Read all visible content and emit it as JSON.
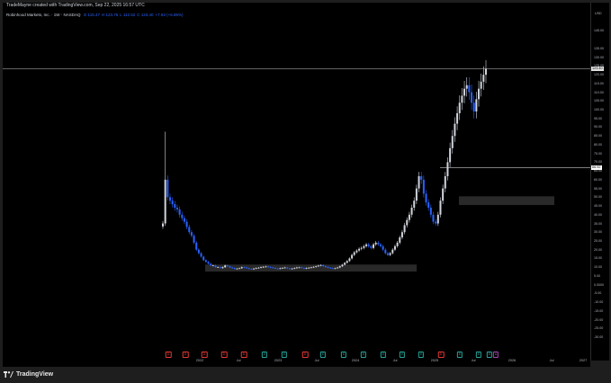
{
  "header": {
    "created_by": "TradeMayne created with TradingView.com, Sep 22, 2025 16:57 UTC"
  },
  "symbol": {
    "name": "Robinhood Markets, Inc. · 1W · NASDAQ",
    "ohlc": [
      {
        "label": "O",
        "value": "115.47"
      },
      {
        "label": "H",
        "value": "123.75"
      },
      {
        "label": "L",
        "value": "112.52"
      },
      {
        "label": "C",
        "value": "123.40"
      },
      {
        "label": "",
        "value": "+7.93 (+6.86%)"
      }
    ]
  },
  "y_axis": {
    "unit": "USD",
    "ticks": [
      "155.00",
      "145.00",
      "135.00",
      "130.00",
      "125.00",
      "120.00",
      "115.00",
      "110.00",
      "105.00",
      "100.00",
      "95.00",
      "90.00",
      "85.00",
      "80.00",
      "75.00",
      "70.00",
      "65.00",
      "60.00",
      "55.00",
      "50.00",
      "45.00",
      "40.00",
      "35.00",
      "30.00",
      "25.00",
      "20.00",
      "15.00",
      "10.00",
      "5.00",
      "0.0000",
      "-5.00",
      "-10.00",
      "-15.00",
      "-20.00",
      "-25.00",
      "-30.00"
    ],
    "current_price_label": "123.40",
    "level_label": "66.92"
  },
  "x_axis": {
    "ticks": [
      "2022",
      "Jul",
      "2023",
      "Jul",
      "2024",
      "Jul",
      "2025",
      "Jul",
      "2026",
      "Jul",
      "2027"
    ]
  },
  "event_badges": [
    {
      "letter": "D",
      "color": "#e53935"
    },
    {
      "letter": "D",
      "color": "#e53935"
    },
    {
      "letter": "D",
      "color": "#e53935"
    },
    {
      "letter": "D",
      "color": "#e53935"
    },
    {
      "letter": "D",
      "color": "#e53935"
    },
    {
      "letter": "E",
      "color": "#26a69a"
    },
    {
      "letter": "E",
      "color": "#26a69a"
    },
    {
      "letter": "D",
      "color": "#e53935"
    },
    {
      "letter": "E",
      "color": "#26a69a"
    },
    {
      "letter": "E",
      "color": "#26a69a"
    },
    {
      "letter": "E",
      "color": "#26a69a"
    },
    {
      "letter": "E",
      "color": "#26a69a"
    },
    {
      "letter": "E",
      "color": "#26a69a"
    },
    {
      "letter": "E",
      "color": "#26a69a"
    },
    {
      "letter": "D",
      "color": "#e53935"
    },
    {
      "letter": "E",
      "color": "#26a69a"
    },
    {
      "letter": "E",
      "color": "#26a69a"
    },
    {
      "letter": "E",
      "color": "#26a69a"
    },
    {
      "letter": "A",
      "color": "#ab47bc"
    },
    {
      "letter": "D",
      "color": "#ab47bc"
    }
  ],
  "footer": {
    "brand": "TradingView"
  },
  "colors": {
    "up": "#d1d4dc",
    "down": "#2962ff",
    "zone": "#3a3a3a",
    "level_line": "#c8c8c8"
  },
  "chart_data": {
    "type": "candlestick",
    "ylim": [
      -30,
      160
    ],
    "x_ticks": [
      "2022",
      "Jul",
      "2023",
      "Jul",
      "2024",
      "Jul",
      "2025",
      "Jul",
      "2026",
      "Jul",
      "2027"
    ],
    "horizontal_levels": [
      123.4,
      66.92
    ],
    "zones": [
      {
        "y_low": 7.5,
        "y_high": 11.5
      },
      {
        "y_low": 45.5,
        "y_high": 50.5
      }
    ],
    "close_series": [
      35,
      60,
      50,
      48,
      46,
      44,
      43,
      40,
      38,
      36,
      33,
      30,
      28,
      24,
      20,
      18,
      16,
      14,
      13,
      12,
      11,
      11,
      10,
      10,
      9.5,
      10,
      11,
      10.5,
      9.8,
      9.5,
      9,
      9.2,
      9.4,
      10,
      9.8,
      9.4,
      9.1,
      8.9,
      9.2,
      9.5,
      9.7,
      10,
      10.2,
      10.4,
      10.1,
      9.8,
      9.6,
      9.2,
      9.1,
      9.4,
      9.6,
      9.8,
      9.3,
      9.0,
      9.2,
      9.5,
      9.8,
      9.9,
      9.5,
      9.2,
      9.5,
      9.7,
      9.9,
      10.2,
      10.5,
      10.9,
      11.2,
      10.6,
      10.1,
      9.7,
      9.4,
      9.2,
      9.4,
      9.8,
      10.5,
      11.4,
      12.5,
      13.5,
      15,
      17,
      18.5,
      19.5,
      20.5,
      21,
      22,
      23,
      22,
      21,
      23,
      24,
      23,
      22,
      20,
      18,
      17,
      18,
      20,
      22,
      24,
      27,
      30,
      34,
      37,
      40,
      44,
      48,
      55,
      62,
      60,
      52,
      47,
      44,
      40,
      36,
      35,
      40,
      48,
      55,
      62,
      70,
      78,
      85,
      92,
      98,
      104,
      108,
      112,
      114,
      110,
      104,
      99,
      106,
      112,
      116,
      120,
      123.4
    ]
  }
}
